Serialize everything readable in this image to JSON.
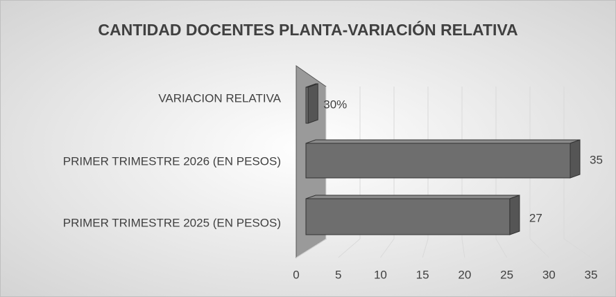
{
  "chart_data": {
    "type": "bar3d",
    "orientation": "horizontal",
    "title": "CANTIDAD DOCENTES PLANTA-VARIACIÓN RELATIVA",
    "categories": [
      "VARIACION  RELATIVA",
      "PRIMER  TRIMESTRE 2026  (EN PESOS)",
      "PRIMER TRIMESTRE 2025 (EN PESOS)"
    ],
    "values": [
      0.3,
      35,
      27
    ],
    "value_labels": [
      "30%",
      "35",
      "27"
    ],
    "color": "#6e6e6e",
    "xlim": [
      0,
      35
    ],
    "xticks": [
      0,
      5,
      10,
      15,
      20,
      25,
      30,
      35
    ],
    "grid": true
  }
}
